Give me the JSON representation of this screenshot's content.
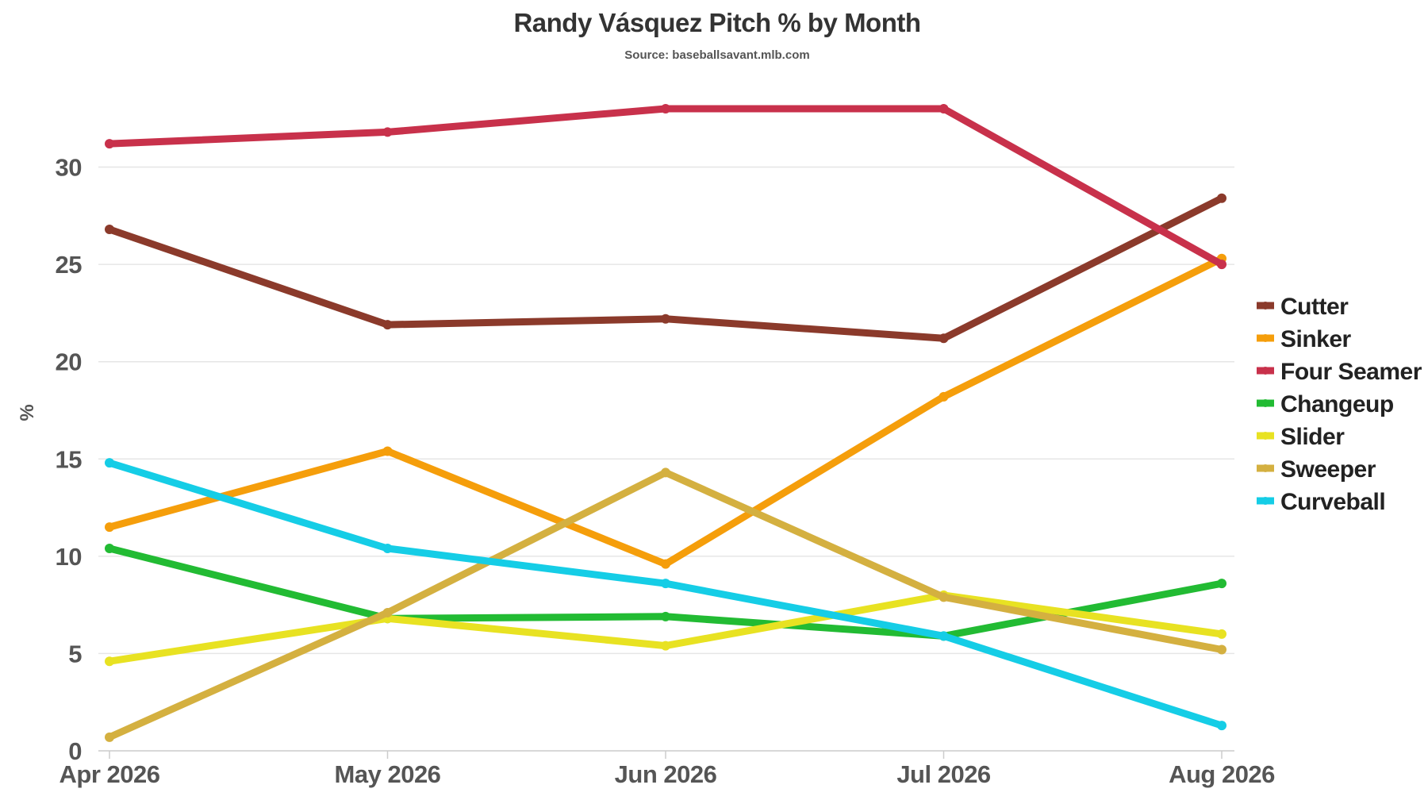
{
  "chart_data": {
    "type": "line",
    "title": "Randy Vásquez Pitch % by Month",
    "subtitle": "Source: baseballsavant.mlb.com",
    "xlabel": "",
    "ylabel": "%",
    "categories": [
      "Apr 2026",
      "May 2026",
      "Jun 2026",
      "Jul 2026",
      "Aug 2026"
    ],
    "yticks": [
      0,
      5,
      10,
      15,
      20,
      25,
      30
    ],
    "ylim": [
      0,
      33
    ],
    "grid": true,
    "legend_position": "right",
    "series": [
      {
        "name": "Cutter",
        "color": "#8b3a2b",
        "values": [
          26.8,
          21.9,
          22.2,
          21.2,
          28.4
        ]
      },
      {
        "name": "Sinker",
        "color": "#f59e0b",
        "values": [
          11.5,
          15.4,
          9.6,
          18.2,
          25.3
        ]
      },
      {
        "name": "Four Seamer",
        "color": "#c8314b",
        "values": [
          31.2,
          31.8,
          33.0,
          33.0,
          25.0
        ]
      },
      {
        "name": "Changeup",
        "color": "#22bb33",
        "values": [
          10.4,
          6.8,
          6.9,
          5.9,
          8.6
        ]
      },
      {
        "name": "Slider",
        "color": "#e8e222",
        "values": [
          4.6,
          6.8,
          5.4,
          8.0,
          6.0
        ]
      },
      {
        "name": "Sweeper",
        "color": "#d4b040",
        "values": [
          0.7,
          7.1,
          14.3,
          7.9,
          5.2
        ]
      },
      {
        "name": "Curveball",
        "color": "#15cde6",
        "values": [
          14.8,
          10.4,
          8.6,
          5.9,
          1.3
        ]
      }
    ]
  }
}
